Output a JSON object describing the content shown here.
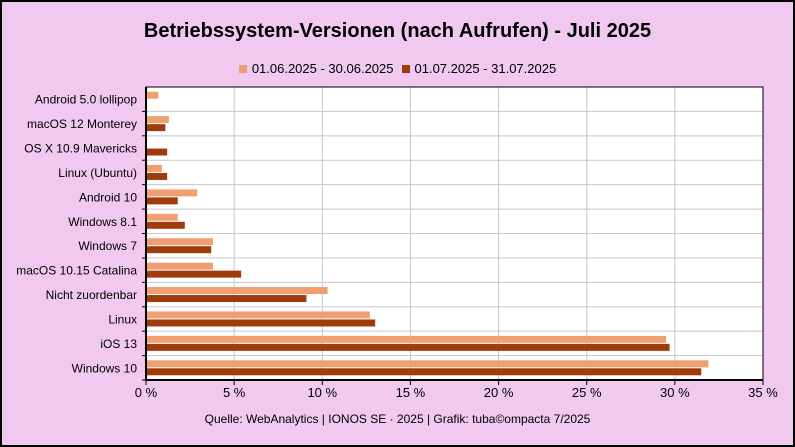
{
  "title": "Betriebssystem-Versionen (nach Aufrufen) - Juli 2025",
  "source": "Quelle: WebAnalytics | IONOS SE · 2025 | Grafik: tuba©ompacta 7/2025",
  "colors": {
    "series1": "#f0a070",
    "series2": "#a03c0c",
    "background": "#f0c8f0",
    "plot": "#ffffff",
    "grid": "#c8c8c8"
  },
  "chart_data": {
    "type": "bar",
    "orientation": "horizontal",
    "title": "Betriebssystem-Versionen (nach Aufrufen) - Juli 2025",
    "categories": [
      "Android 5.0 lollipop",
      "macOS 12 Monterey",
      "OS X 10.9 Mavericks",
      "Linux (Ubuntu)",
      "Android 10",
      "Windows 8.1",
      "Windows 7",
      "macOS 10.15 Catalina",
      "Nicht zuordenbar",
      "Linux",
      "iOS 13",
      "Windows 10"
    ],
    "series": [
      {
        "name": "01.06.2025 - 30.06.2025",
        "values": [
          0.7,
          1.3,
          0.0,
          0.9,
          2.9,
          1.8,
          3.8,
          3.8,
          10.3,
          12.7,
          29.5,
          31.9
        ]
      },
      {
        "name": "01.07.2025 - 31.07.2025",
        "values": [
          0.0,
          1.1,
          1.2,
          1.2,
          1.8,
          2.2,
          3.7,
          5.4,
          9.1,
          13.0,
          29.7,
          31.5
        ]
      }
    ],
    "xlim": [
      0,
      35
    ],
    "xticks": [
      "0 %",
      "5 %",
      "10 %",
      "15 %",
      "20 %",
      "25 %",
      "30 %",
      "35 %"
    ],
    "grid": true,
    "legend_position": "top"
  }
}
